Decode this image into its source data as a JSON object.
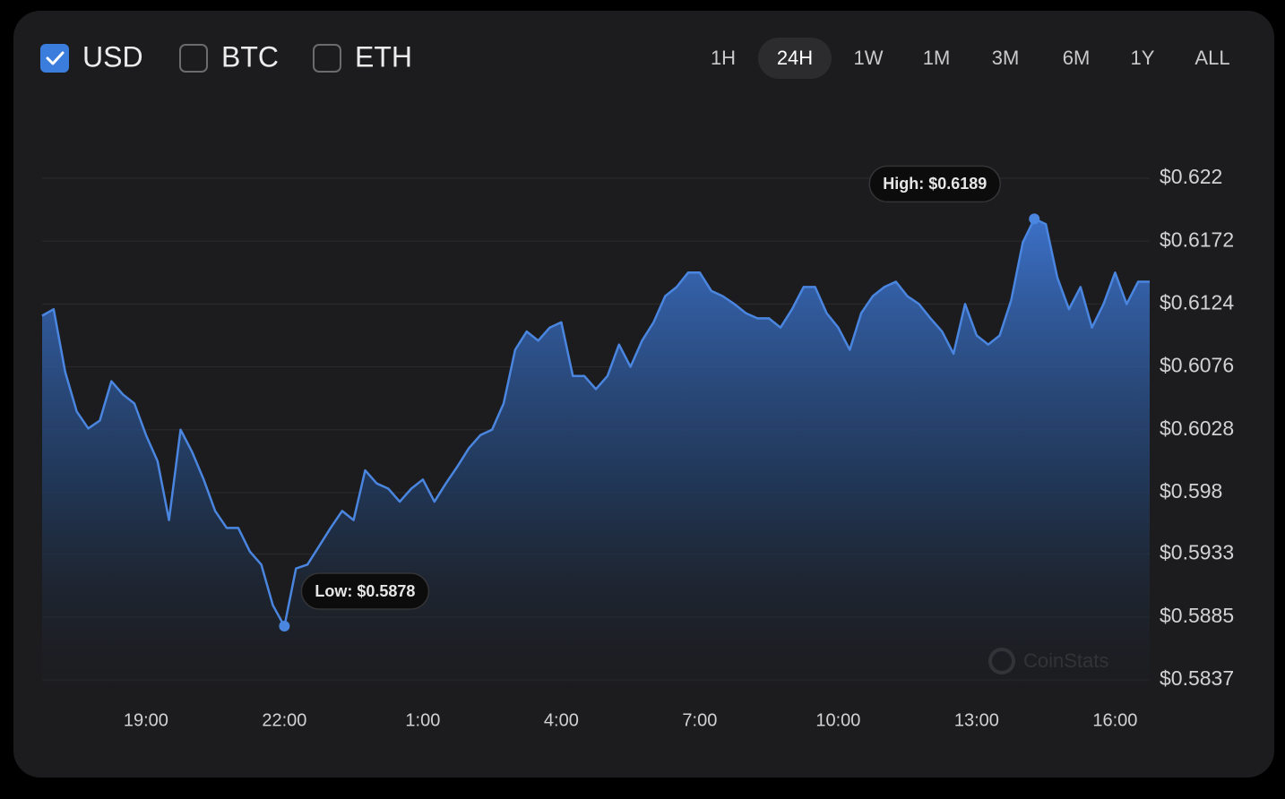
{
  "controls": {
    "currencies": [
      {
        "label": "USD",
        "checked": true
      },
      {
        "label": "BTC",
        "checked": false
      },
      {
        "label": "ETH",
        "checked": false
      }
    ],
    "ranges": [
      "1H",
      "24H",
      "1W",
      "1M",
      "3M",
      "6M",
      "1Y",
      "ALL"
    ],
    "selected_range": "24H"
  },
  "chart_data": {
    "type": "area",
    "watermark": "CoinStats",
    "high_label": "High: $0.6189",
    "low_label": "Low: $0.5878",
    "xlim": [
      16.75,
      40.75
    ],
    "xticks": [
      {
        "value": 19,
        "label": "19:00"
      },
      {
        "value": 22,
        "label": "22:00"
      },
      {
        "value": 25,
        "label": "1:00"
      },
      {
        "value": 28,
        "label": "4:00"
      },
      {
        "value": 31,
        "label": "7:00"
      },
      {
        "value": 34,
        "label": "10:00"
      },
      {
        "value": 37,
        "label": "13:00"
      },
      {
        "value": 40,
        "label": "16:00"
      }
    ],
    "ylim": [
      0.5837,
      0.622
    ],
    "yticks": [
      {
        "value": 0.622,
        "label": "$0.622"
      },
      {
        "value": 0.6172,
        "label": "$0.6172"
      },
      {
        "value": 0.6124,
        "label": "$0.6124"
      },
      {
        "value": 0.6076,
        "label": "$0.6076"
      },
      {
        "value": 0.6028,
        "label": "$0.6028"
      },
      {
        "value": 0.598,
        "label": "$0.598"
      },
      {
        "value": 0.5933,
        "label": "$0.5933"
      },
      {
        "value": 0.5885,
        "label": "$0.5885"
      },
      {
        "value": 0.5837,
        "label": "$0.5837"
      }
    ],
    "grid": true,
    "x": [
      16.75,
      17.0,
      17.25,
      17.5,
      17.75,
      18.0,
      18.25,
      18.5,
      18.75,
      19.0,
      19.25,
      19.5,
      19.75,
      20.0,
      20.25,
      20.5,
      20.75,
      21.0,
      21.25,
      21.5,
      21.75,
      22.0,
      22.25,
      22.5,
      22.75,
      23.0,
      23.25,
      23.5,
      23.75,
      24.0,
      24.25,
      24.5,
      24.75,
      25.0,
      25.25,
      25.5,
      25.75,
      26.0,
      26.25,
      26.5,
      26.75,
      27.0,
      27.25,
      27.5,
      27.75,
      28.0,
      28.25,
      28.5,
      28.75,
      29.0,
      29.25,
      29.5,
      29.75,
      30.0,
      30.25,
      30.5,
      30.75,
      31.0,
      31.25,
      31.5,
      31.75,
      32.0,
      32.25,
      32.5,
      32.75,
      33.0,
      33.25,
      33.5,
      33.75,
      34.0,
      34.25,
      34.5,
      34.75,
      35.0,
      35.25,
      35.5,
      35.75,
      36.0,
      36.25,
      36.5,
      36.75,
      37.0,
      37.25,
      37.5,
      37.75,
      38.0,
      38.25,
      38.5,
      38.75,
      39.0,
      39.25,
      39.5,
      39.75,
      40.0,
      40.25,
      40.5,
      40.75
    ],
    "series": [
      {
        "name": "USD",
        "color": "#4a86e0",
        "values": [
          0.6115,
          0.612,
          0.6072,
          0.6042,
          0.6029,
          0.6035,
          0.6065,
          0.6055,
          0.6048,
          0.6024,
          0.6004,
          0.5959,
          0.6028,
          0.6011,
          0.599,
          0.5966,
          0.5953,
          0.5953,
          0.5935,
          0.5925,
          0.5894,
          0.5878,
          0.5922,
          0.5925,
          0.5939,
          0.5953,
          0.5966,
          0.5959,
          0.5997,
          0.5987,
          0.5983,
          0.5973,
          0.5983,
          0.599,
          0.5973,
          0.5987,
          0.6,
          0.6014,
          0.6024,
          0.6028,
          0.6048,
          0.6089,
          0.6103,
          0.6096,
          0.6106,
          0.611,
          0.6069,
          0.6069,
          0.6059,
          0.6069,
          0.6093,
          0.6076,
          0.6096,
          0.611,
          0.613,
          0.6137,
          0.6148,
          0.6148,
          0.6134,
          0.613,
          0.6124,
          0.6117,
          0.6113,
          0.6113,
          0.6106,
          0.612,
          0.6137,
          0.6137,
          0.6117,
          0.6106,
          0.6089,
          0.6117,
          0.613,
          0.6137,
          0.6141,
          0.613,
          0.6124,
          0.6113,
          0.6103,
          0.6086,
          0.6124,
          0.61,
          0.6093,
          0.61,
          0.6127,
          0.6171,
          0.6189,
          0.6185,
          0.6144,
          0.612,
          0.6137,
          0.6106,
          0.6124,
          0.6148,
          0.6124,
          0.6141,
          0.6141
        ]
      }
    ]
  }
}
